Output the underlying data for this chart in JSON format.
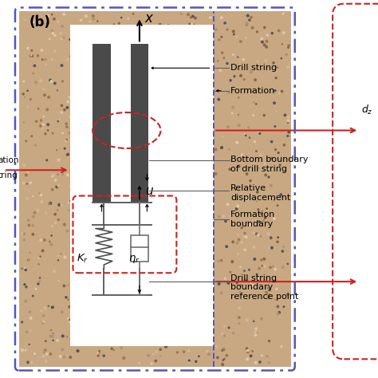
{
  "title": "(b)",
  "x_axis_label": "x",
  "u_label": "u",
  "Kr_label": "$K_r$",
  "eta_label": "$\\eta_r$",
  "annotations": [
    "Drill string",
    "Formation",
    "Bottom boundary\nof drill string",
    "Relative\ndisplacement",
    "Formation\nboundary",
    "Drill string\nboundary\nreference point"
  ],
  "granite_color_base": "#c8a882",
  "granite_speckle_colors": [
    "#8B6347",
    "#a07850",
    "#d4b896",
    "#555555",
    "#b09070",
    "#e0c8a8"
  ],
  "drill_string_color": "#4a4a4a",
  "white_color": "#ffffff",
  "outer_box_color": "#5555bb",
  "inner_dashed_color": "#cc2222",
  "red_arrow_color": "#cc2222",
  "gray_line_color": "#808080",
  "bg_color": "#ffffff"
}
